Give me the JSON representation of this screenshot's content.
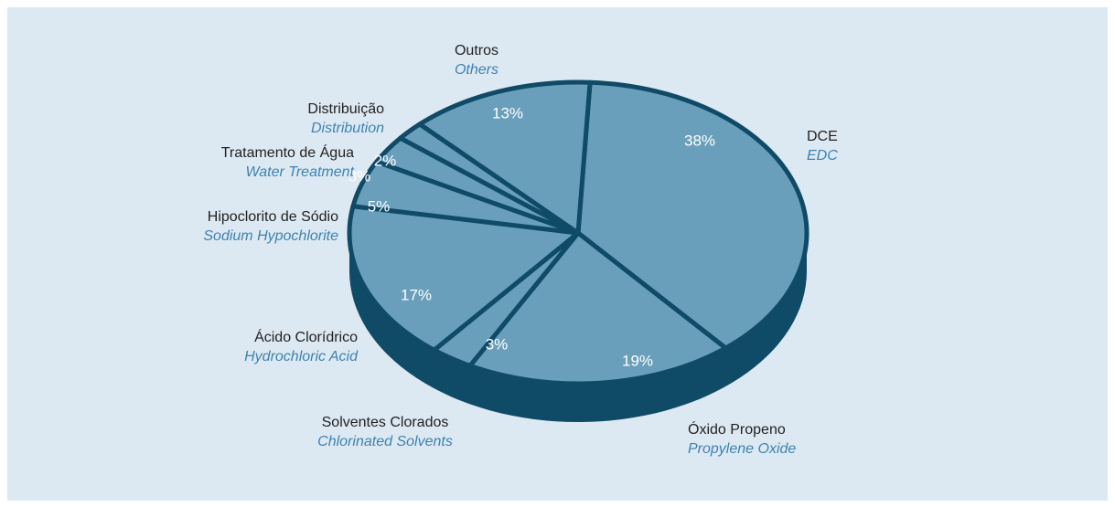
{
  "chart_data": {
    "type": "pie",
    "categories": [
      "DCE",
      "Óxido Propeno",
      "Solventes Clorados",
      "Ácido Clorídrico",
      "Hipoclorito de Sódio",
      "Tratamento de Água",
      "Distribuição",
      "Outros"
    ],
    "translations": [
      "EDC",
      "Propylene Oxide",
      "Chlorinated Solvents",
      "Hydrochloric Acid",
      "Sodium Hypochlorite",
      "Water Treatment",
      "Distribution",
      "Others"
    ],
    "values": [
      38,
      19,
      3,
      17,
      5,
      3,
      2,
      13
    ],
    "value_labels": [
      "38%",
      "19%",
      "3%",
      "17%",
      "5%",
      "3%",
      "2%",
      "13%"
    ],
    "color": "#6a9fbb",
    "side_color": "#0f4a66"
  }
}
